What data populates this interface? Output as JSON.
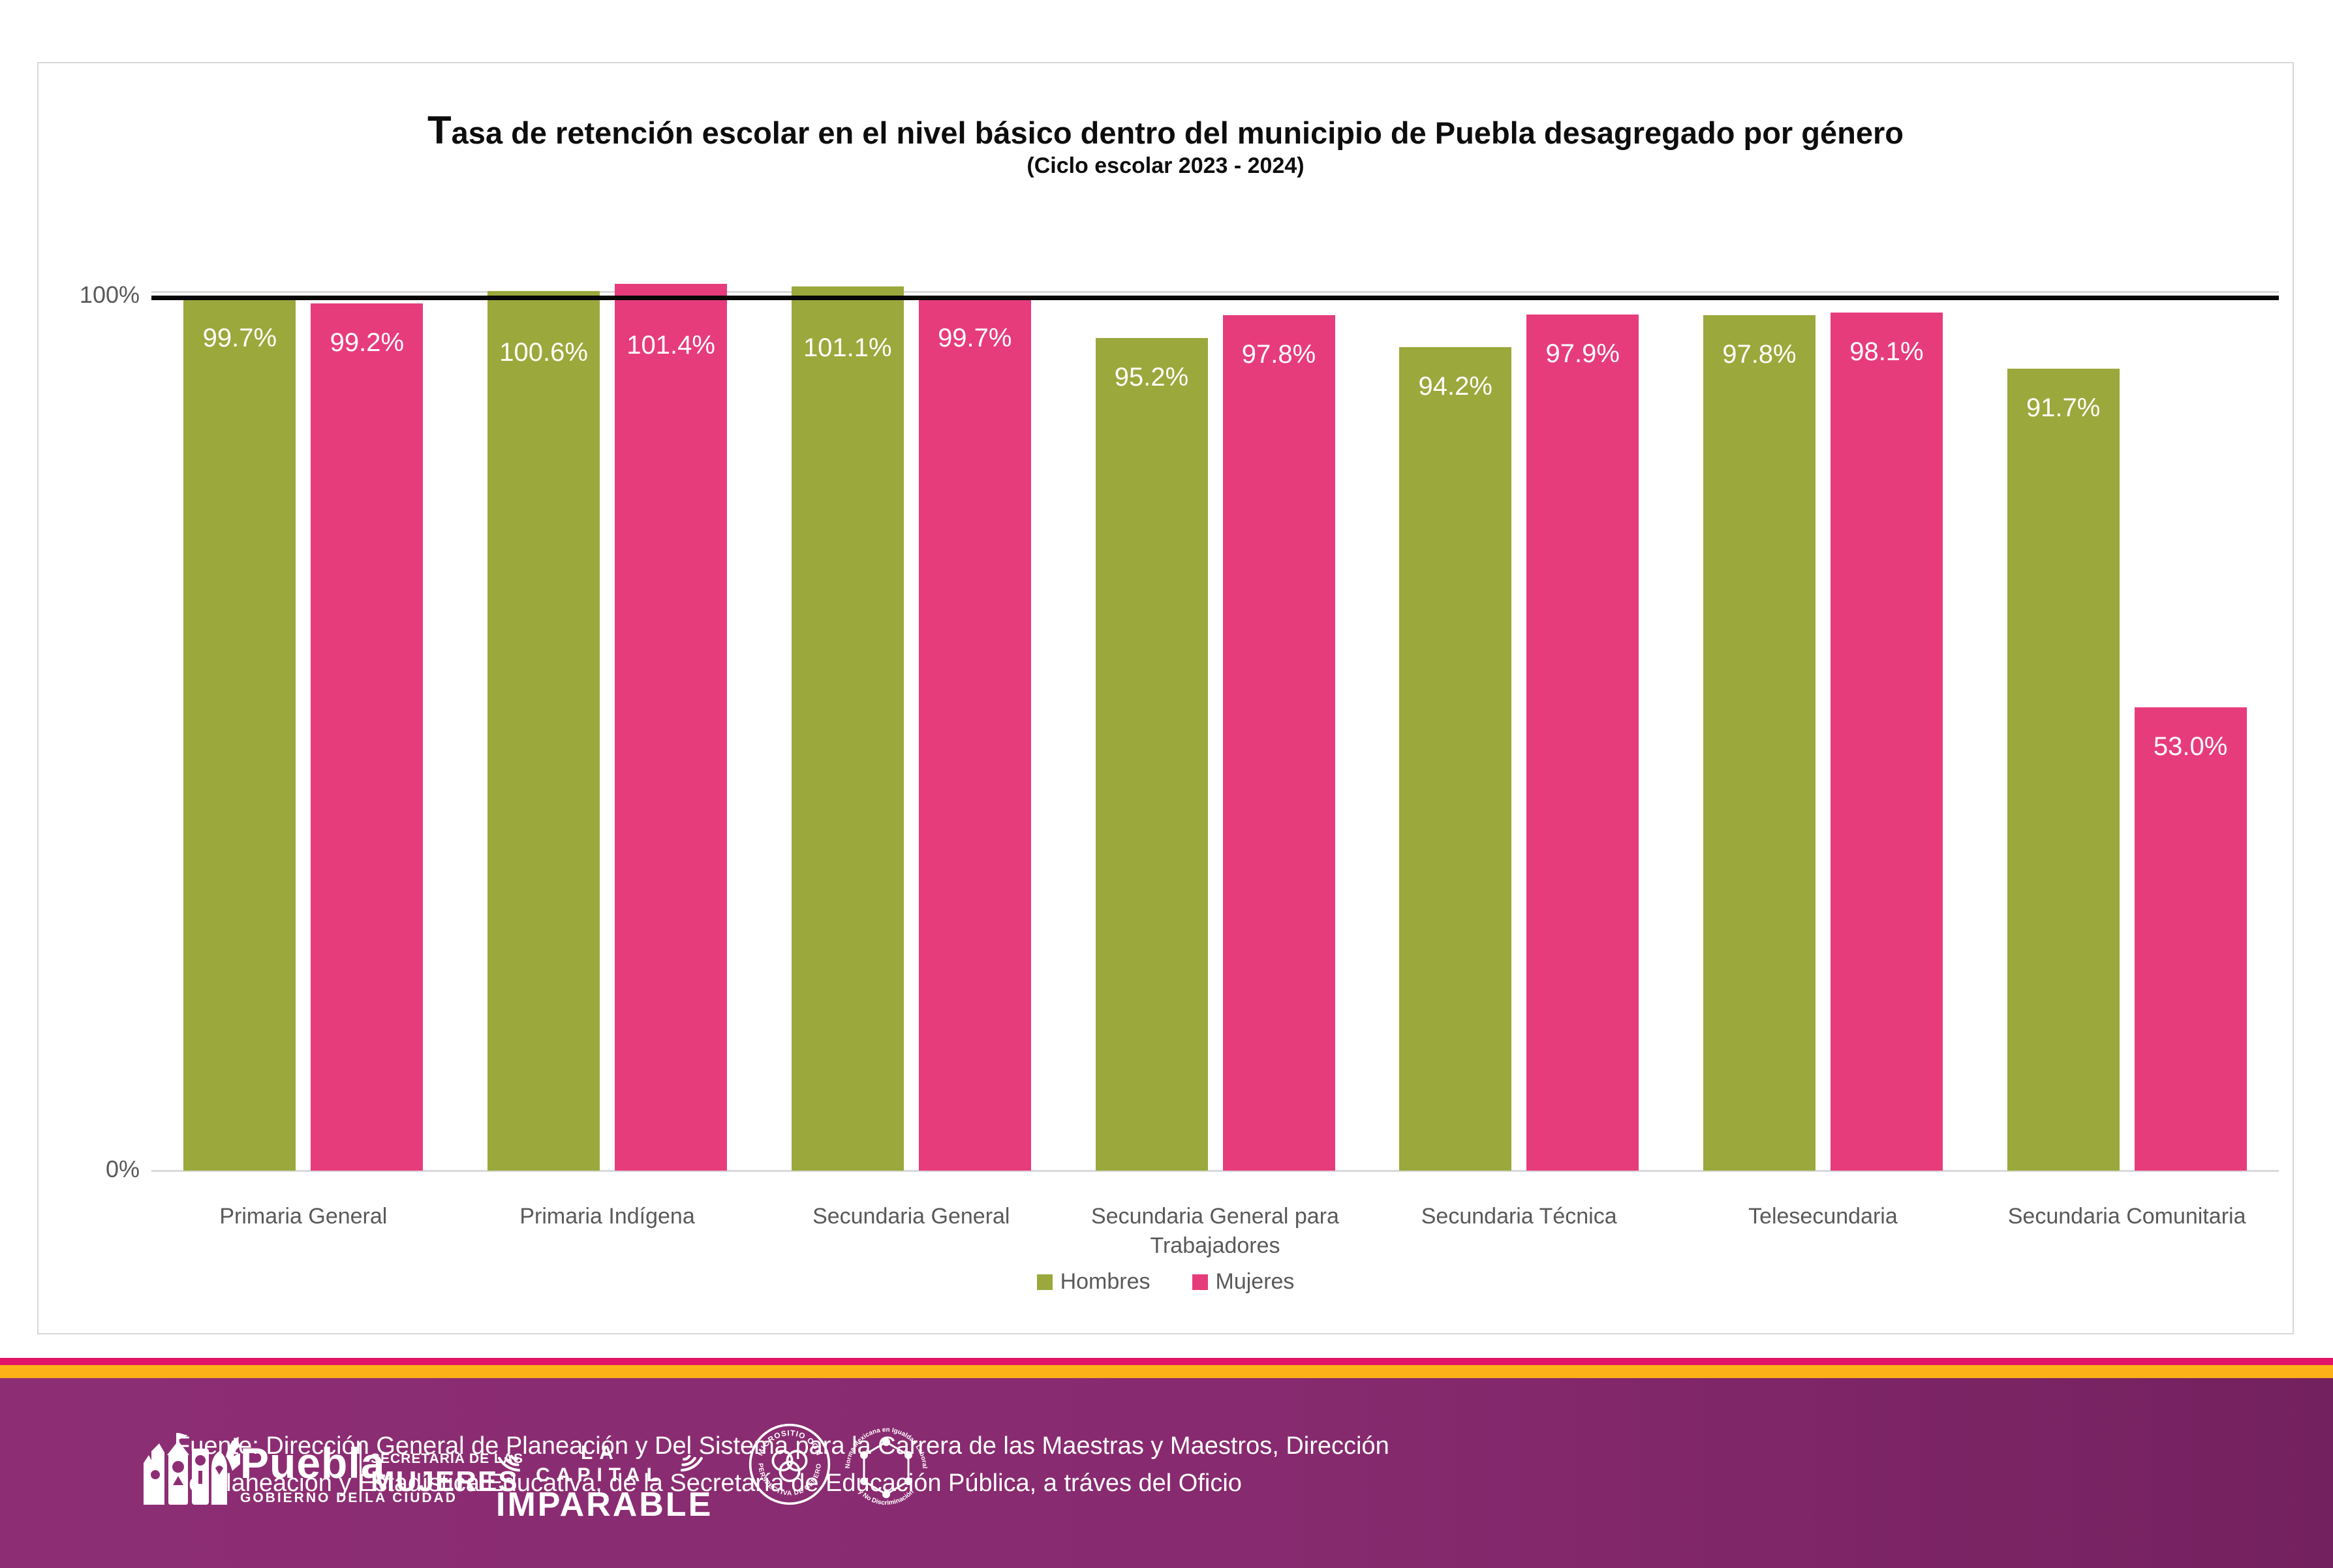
{
  "chart_data": {
    "type": "bar",
    "title": "Tasa de retención escolar en el nivel básico dentro del municipio de Puebla desagregado por género",
    "subtitle": "(Ciclo escolar 2023 - 2024)",
    "categories": [
      "Primaria General",
      "Primaria Indígena",
      "Secundaria General",
      "Secundaria General para Trabajadores",
      "Secundaria Técnica",
      "Telesecundaria",
      "Secundaria Comunitaria"
    ],
    "series": [
      {
        "name": "Hombres",
        "color": "#9BA83C",
        "values": [
          99.7,
          100.6,
          101.1,
          95.2,
          94.2,
          97.8,
          91.7
        ]
      },
      {
        "name": "Mujeres",
        "color": "#E73C7C",
        "values": [
          99.2,
          101.4,
          99.7,
          97.8,
          97.9,
          98.1,
          53.0
        ]
      }
    ],
    "value_label_format": "one_decimal_percent",
    "ylim": [
      0,
      105
    ],
    "yticks": [
      {
        "value": 100,
        "label": "100%"
      },
      {
        "value": 0,
        "label": "0%"
      }
    ],
    "reference_line": {
      "value": 100,
      "color": "#000000"
    },
    "legend_position": "bottom",
    "grid": "only-100-and-0"
  },
  "footer": {
    "source_line1": "Fuente: Dirección General de Planeación y Del Sistema para la Carrera de las Maestras y Maestros, Dirección",
    "source_line2": "de Planeación y Estadística Educativa, de la Secretaría de Educación Pública, a tráves del Oficio",
    "puebla_logo": {
      "wordmark": "Puebla",
      "tagline": "GOBIERNO DE LA CIUDAD",
      "secretaria_line1": "SECRETARÍA DE LAS",
      "secretaria_line2": "MUJERES"
    },
    "capital_logo": {
      "line1": "LA CAPITAL",
      "line2": "IMPARABLE"
    },
    "badge_genero": {
      "text_top": "MICROSITIO CON",
      "text_bottom": "PERSPECTIVA DE GÉNERO"
    },
    "badge_norma": {
      "text_top": "Norma Mexicana en Igualdad Laboral",
      "text_bottom": "y No Discriminación"
    }
  },
  "colors": {
    "hombres": "#9BA83C",
    "mujeres": "#E73C7C",
    "stripe_pink": "#E01568",
    "stripe_orange": "#FBB117",
    "footer_purple_left": "#8D2E74",
    "footer_purple_right": "#74215F",
    "axis_text": "#595959",
    "gridline": "#D9D9D9",
    "reference_line": "#000000"
  }
}
